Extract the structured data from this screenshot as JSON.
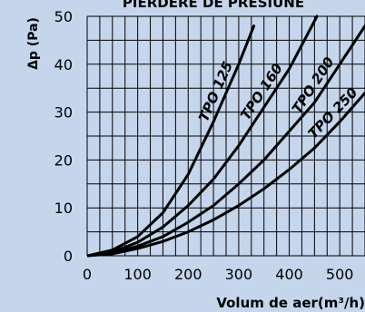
{
  "chart_data": {
    "type": "line",
    "title": "PIERDERE DE PRESIUNE",
    "ylabel": "Δp (Pa)",
    "xlabel": "Volum de aer(m³/h)",
    "xlim": [
      0,
      550
    ],
    "ylim": [
      0,
      50
    ],
    "xticks": [
      0,
      100,
      200,
      300,
      400,
      500
    ],
    "yticks": [
      0,
      10,
      20,
      30,
      40,
      50
    ],
    "grid": true,
    "series": [
      {
        "name": "TPO 125",
        "x": [
          0,
          50,
          100,
          150,
          200,
          250,
          300,
          330
        ],
        "y": [
          0,
          1.2,
          4.0,
          9.0,
          17.0,
          28.0,
          40.0,
          48.0
        ]
      },
      {
        "name": "TPO 160",
        "x": [
          0,
          50,
          100,
          150,
          200,
          250,
          300,
          350,
          400,
          455
        ],
        "y": [
          0,
          0.8,
          2.8,
          6.0,
          10.5,
          16.0,
          23.0,
          31.0,
          39.0,
          50.0
        ]
      },
      {
        "name": "TPO 200",
        "x": [
          0,
          50,
          100,
          150,
          200,
          250,
          300,
          350,
          400,
          450,
          500,
          550
        ],
        "y": [
          0,
          0.6,
          2.0,
          4.0,
          7.0,
          10.5,
          15.0,
          20.0,
          26.0,
          32.0,
          40.0,
          48.0
        ]
      },
      {
        "name": "TPO 250",
        "x": [
          0,
          50,
          100,
          150,
          200,
          250,
          300,
          350,
          400,
          450,
          500,
          550
        ],
        "y": [
          0,
          0.4,
          1.5,
          3.0,
          5.0,
          7.5,
          10.5,
          14.0,
          18.0,
          22.5,
          28.0,
          34.0
        ]
      }
    ]
  }
}
